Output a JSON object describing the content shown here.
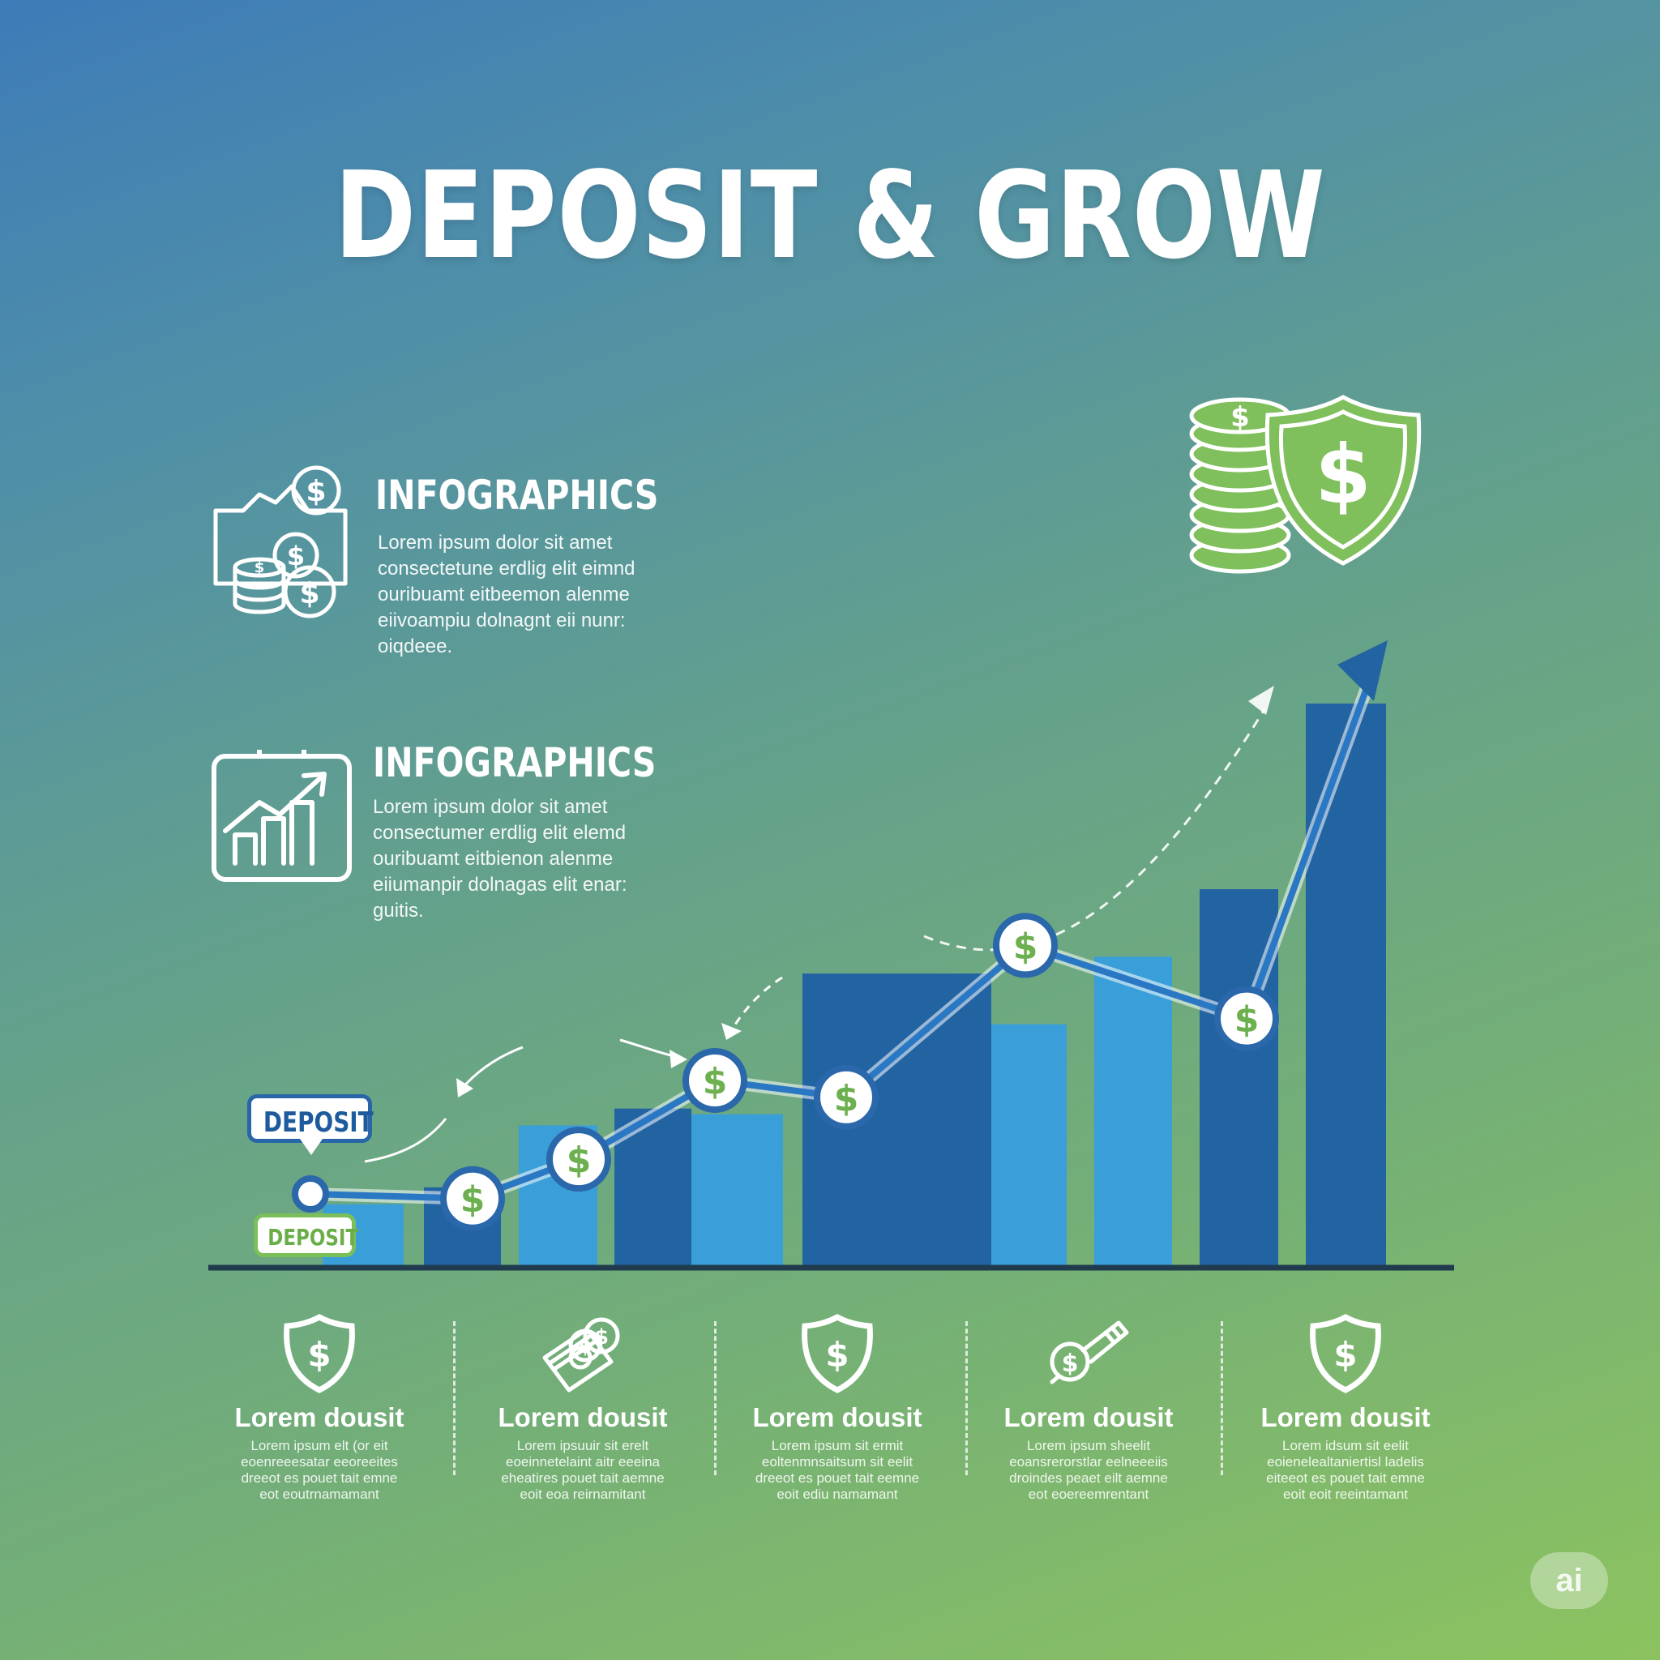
{
  "title": "DEPOSIT & GROW",
  "info_blocks": [
    {
      "icon": "coins-money-icon",
      "heading": "INFOGRAPHICS",
      "lines": [
        "Lorem ipsum dolor sit amet",
        "consectetune erdlig elit eimnd",
        "ouribuamt eitbeemon alenme",
        "eiivoampiu dolnagnt eii nunr:",
        "oiqdeee."
      ]
    },
    {
      "icon": "chart-board-icon",
      "heading": "INFOGRAPHICS",
      "lines": [
        "Lorem ipsum dolor sit amet",
        "consectumer erdlig elit elemd",
        "ouribuamt eitbienon alenme",
        "eiiumanpir dolnagas elit enar:",
        "guitis."
      ]
    }
  ],
  "labels": {
    "deposit_top": "DEPOSIT",
    "deposit_bottom": "DEPOSIT"
  },
  "marker_symbol": "$",
  "chart_data": {
    "type": "bar",
    "bar_heights_relative": [
      0.11,
      0.14,
      0.25,
      0.28,
      0.27,
      0.52,
      0.43,
      0.55,
      0.67,
      1.0
    ],
    "bar_colors": [
      "light",
      "dark",
      "light",
      "dark",
      "light",
      "dark",
      "light",
      "light",
      "dark",
      "dark"
    ],
    "growth_line_points": [
      0.12,
      0.19,
      0.33,
      0.3,
      0.57,
      0.44,
      0.77
    ],
    "colors": {
      "dark_bar": "#2263a2",
      "light_bar": "#3a9fd8",
      "marker_ring": "#2a67ab",
      "marker_dollar": "#6cb04f"
    }
  },
  "footer": [
    {
      "icon": "shield-dollar-icon",
      "title": "Lorem dousit",
      "lines": [
        "Lorem ipsum elt (or eit",
        "eoenreeesatar eeoreeites",
        "dreeot es pouet tait emne",
        "eot eoutrnamamant"
      ]
    },
    {
      "icon": "cash-bundle-icon",
      "title": "Lorem dousit",
      "lines": [
        "Lorem ipsuuir sit erelt",
        "eoeinnetelaint aitr eeeina",
        "eheatires pouet tait aemne",
        "eoit eoa reirnamitant"
      ]
    },
    {
      "icon": "shield-dollar-icon",
      "title": "Lorem dousit",
      "lines": [
        "Lorem ipsum sit ermit",
        "eoltenmnsaitsum sit eelit",
        "dreeot es pouet tait eemne",
        "eoit ediu namamant"
      ]
    },
    {
      "icon": "coin-key-icon",
      "title": "Lorem dousit",
      "lines": [
        "Lorem ipsum sheelit",
        "eoansrerorstlar eelneeeiis",
        "droindes peaet eilt aemne",
        "eot eoereemrentant"
      ]
    },
    {
      "icon": "shield-dollar-icon",
      "title": "Lorem dousit",
      "lines": [
        "Lorem idsum sit eelit",
        "eoienelealtaniertisl ladelis",
        "eiteeot es pouet tait emne",
        "eoit eoit reeintamant"
      ]
    }
  ],
  "badge": "ai"
}
